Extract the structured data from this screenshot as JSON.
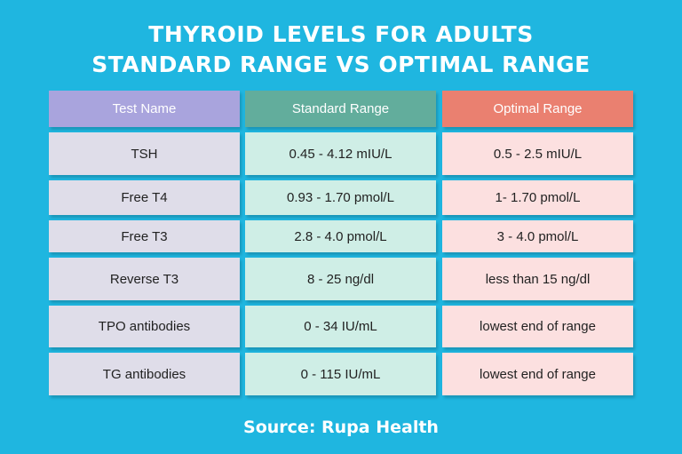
{
  "title": {
    "line1": "THYROID LEVELS FOR ADULTS",
    "line2": "STANDARD RANGE VS OPTIMAL RANGE"
  },
  "table": {
    "headers": [
      "Test Name",
      "Standard Range",
      "Optimal Range"
    ],
    "rows": [
      {
        "test": "TSH",
        "standard": "0.45 - 4.12 mIU/L",
        "optimal": "0.5 - 2.5 mIU/L"
      },
      {
        "test": "Free T4",
        "standard": "0.93 - 1.70 pmol/L",
        "optimal": "1- 1.70 pmol/L"
      },
      {
        "test": "Free T3",
        "standard": "2.8 - 4.0 pmol/L",
        "optimal": "3 - 4.0 pmol/L"
      },
      {
        "test": "Reverse T3",
        "standard": "8 - 25 ng/dl",
        "optimal": "less than 15 ng/dl"
      },
      {
        "test": "TPO antibodies",
        "standard": "0 - 34 IU/mL",
        "optimal": "lowest end of range"
      },
      {
        "test": "TG antibodies",
        "standard": "0 - 115 IU/mL",
        "optimal": "lowest end of range"
      }
    ]
  },
  "source": "Source: Rupa Health",
  "colors": {
    "background": "#1fb6e0",
    "header_test": "#a9a4dd",
    "header_standard": "#62ad9c",
    "header_optimal": "#ea8070",
    "body_test": "#dfdde9",
    "body_standard": "#cfeee6",
    "body_optimal": "#fce0e0"
  }
}
